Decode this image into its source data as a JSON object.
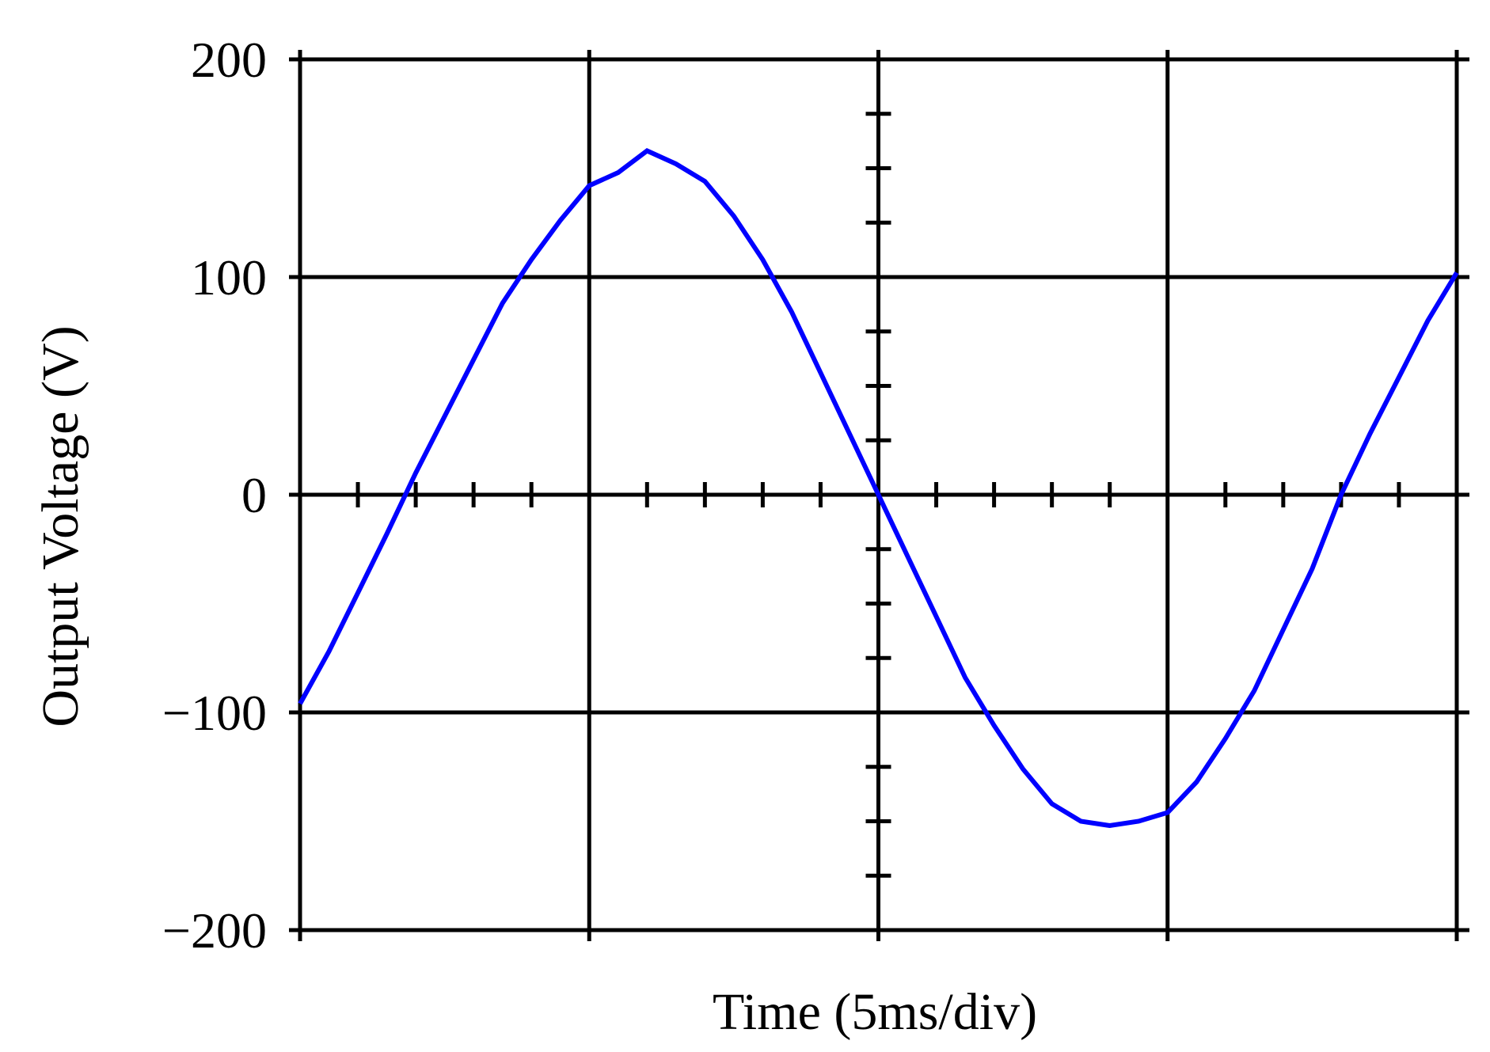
{
  "chart_data": {
    "type": "line",
    "title": "",
    "xlabel": "Time (5ms/div)",
    "ylabel": "Output Voltage (V)",
    "x_unit": "ms",
    "xlim": [
      0,
      20
    ],
    "ylim": [
      -200,
      200
    ],
    "y_ticks": [
      200,
      100,
      0,
      -100,
      -200
    ],
    "y_tick_labels": [
      "200",
      "100",
      "0",
      "−100",
      "−200"
    ],
    "x_divisions": 4,
    "grid": true,
    "line_color": "#0000ff",
    "series": [
      {
        "x": [
          0,
          0.5,
          1,
          1.5,
          2,
          2.5,
          3,
          3.5,
          4,
          4.5,
          5,
          5.5,
          6,
          6.5,
          7,
          7.5,
          8,
          8.5,
          9,
          9.5,
          10,
          10.5,
          11,
          11.5,
          12,
          12.5,
          13,
          13.5,
          14,
          14.5,
          15,
          15.5,
          16,
          16.5,
          17,
          17.5,
          18,
          18.5,
          19,
          19.5,
          20
        ],
        "y": [
          -96,
          -72,
          -45,
          -18,
          10,
          36,
          62,
          88,
          108,
          126,
          142,
          148,
          158,
          152,
          144,
          128,
          108,
          84,
          56,
          28,
          0,
          -28,
          -56,
          -84,
          -106,
          -126,
          -142,
          -150,
          -152,
          -150,
          -146,
          -132,
          -112,
          -90,
          -62,
          -34,
          0,
          28,
          54,
          80,
          102
        ]
      }
    ]
  }
}
